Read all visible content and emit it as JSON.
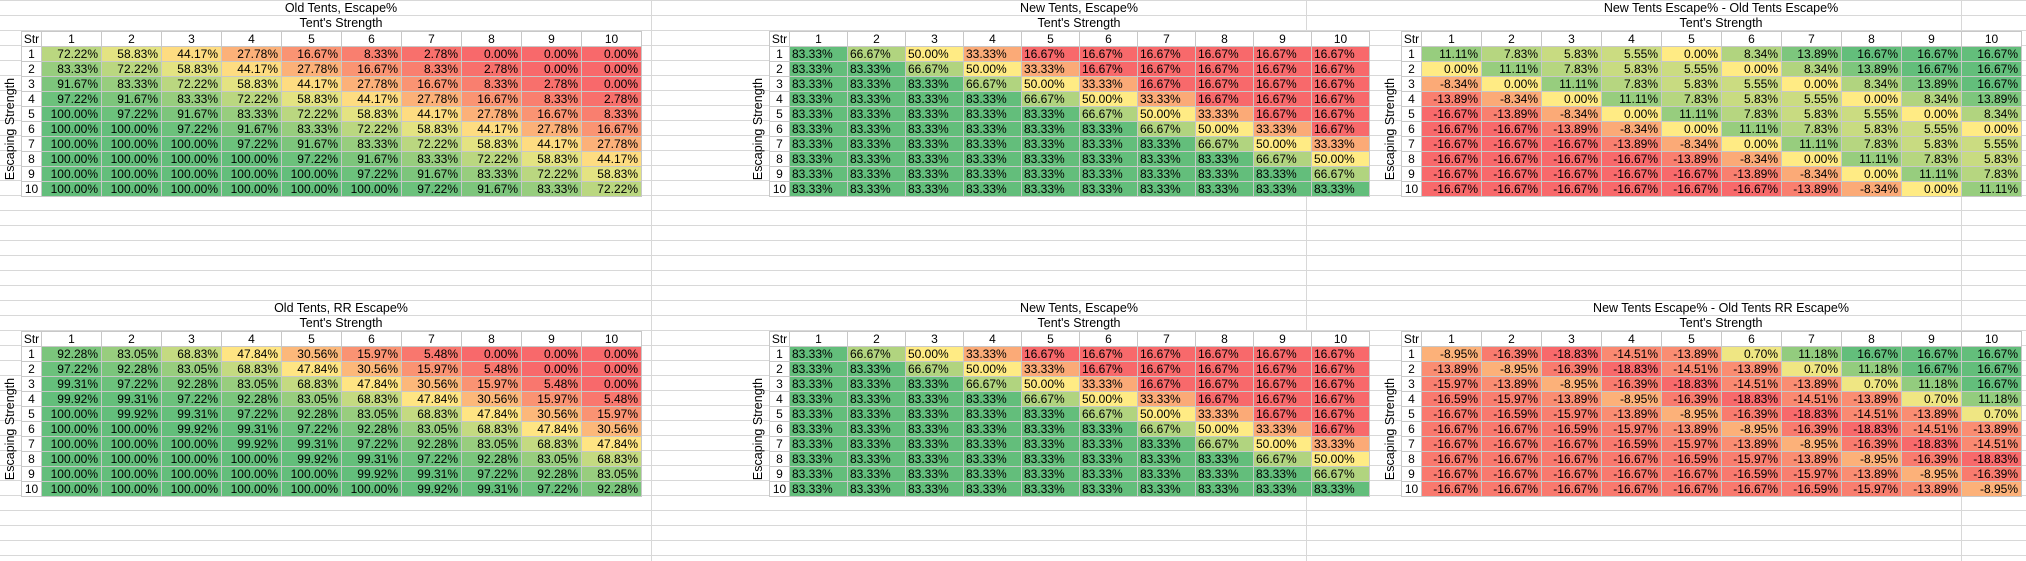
{
  "colors": {
    "red": "#f8696b",
    "yellow": "#ffeb84",
    "green": "#63be7b"
  },
  "tables": [
    {
      "title": "Old Tents, Escape%",
      "subtitle": "Tent's Strength",
      "ylabel": "Escaping Strength",
      "corner": "Str",
      "cols": [
        "1",
        "2",
        "3",
        "4",
        "5",
        "6",
        "7",
        "8",
        "9",
        "10"
      ],
      "rows": [
        "1",
        "2",
        "3",
        "4",
        "5",
        "6",
        "7",
        "8",
        "9",
        "10"
      ],
      "values": [
        [
          "72.22%",
          "58.83%",
          "44.17%",
          "27.78%",
          "16.67%",
          "8.33%",
          "2.78%",
          "0.00%",
          "0.00%",
          "0.00%"
        ],
        [
          "83.33%",
          "72.22%",
          "58.83%",
          "44.17%",
          "27.78%",
          "16.67%",
          "8.33%",
          "2.78%",
          "0.00%",
          "0.00%"
        ],
        [
          "91.67%",
          "83.33%",
          "72.22%",
          "58.83%",
          "44.17%",
          "27.78%",
          "16.67%",
          "8.33%",
          "2.78%",
          "0.00%"
        ],
        [
          "97.22%",
          "91.67%",
          "83.33%",
          "72.22%",
          "58.83%",
          "44.17%",
          "27.78%",
          "16.67%",
          "8.33%",
          "2.78%"
        ],
        [
          "100.00%",
          "97.22%",
          "91.67%",
          "83.33%",
          "72.22%",
          "58.83%",
          "44.17%",
          "27.78%",
          "16.67%",
          "8.33%"
        ],
        [
          "100.00%",
          "100.00%",
          "97.22%",
          "91.67%",
          "83.33%",
          "72.22%",
          "58.83%",
          "44.17%",
          "27.78%",
          "16.67%"
        ],
        [
          "100.00%",
          "100.00%",
          "100.00%",
          "97.22%",
          "91.67%",
          "83.33%",
          "72.22%",
          "58.83%",
          "44.17%",
          "27.78%"
        ],
        [
          "100.00%",
          "100.00%",
          "100.00%",
          "100.00%",
          "97.22%",
          "91.67%",
          "83.33%",
          "72.22%",
          "58.83%",
          "44.17%"
        ],
        [
          "100.00%",
          "100.00%",
          "100.00%",
          "100.00%",
          "100.00%",
          "97.22%",
          "91.67%",
          "83.33%",
          "72.22%",
          "58.83%"
        ],
        [
          "100.00%",
          "100.00%",
          "100.00%",
          "100.00%",
          "100.00%",
          "100.00%",
          "97.22%",
          "91.67%",
          "83.33%",
          "72.22%"
        ]
      ]
    },
    {
      "title": "New Tents, Escape%",
      "subtitle": "Tent's Strength",
      "ylabel": "Escaping Strength",
      "corner": "Str",
      "cols": [
        "1",
        "2",
        "3",
        "4",
        "5",
        "6",
        "7",
        "8",
        "9",
        "10"
      ],
      "rows": [
        "1",
        "2",
        "3",
        "4",
        "5",
        "6",
        "7",
        "8",
        "9",
        "10"
      ],
      "values": [
        [
          "83.33%",
          "66.67%",
          "50.00%",
          "33.33%",
          "16.67%",
          "16.67%",
          "16.67%",
          "16.67%",
          "16.67%",
          "16.67%"
        ],
        [
          "83.33%",
          "83.33%",
          "66.67%",
          "50.00%",
          "33.33%",
          "16.67%",
          "16.67%",
          "16.67%",
          "16.67%",
          "16.67%"
        ],
        [
          "83.33%",
          "83.33%",
          "83.33%",
          "66.67%",
          "50.00%",
          "33.33%",
          "16.67%",
          "16.67%",
          "16.67%",
          "16.67%"
        ],
        [
          "83.33%",
          "83.33%",
          "83.33%",
          "83.33%",
          "66.67%",
          "50.00%",
          "33.33%",
          "16.67%",
          "16.67%",
          "16.67%"
        ],
        [
          "83.33%",
          "83.33%",
          "83.33%",
          "83.33%",
          "83.33%",
          "66.67%",
          "50.00%",
          "33.33%",
          "16.67%",
          "16.67%"
        ],
        [
          "83.33%",
          "83.33%",
          "83.33%",
          "83.33%",
          "83.33%",
          "83.33%",
          "66.67%",
          "50.00%",
          "33.33%",
          "16.67%"
        ],
        [
          "83.33%",
          "83.33%",
          "83.33%",
          "83.33%",
          "83.33%",
          "83.33%",
          "83.33%",
          "66.67%",
          "50.00%",
          "33.33%"
        ],
        [
          "83.33%",
          "83.33%",
          "83.33%",
          "83.33%",
          "83.33%",
          "83.33%",
          "83.33%",
          "83.33%",
          "66.67%",
          "50.00%"
        ],
        [
          "83.33%",
          "83.33%",
          "83.33%",
          "83.33%",
          "83.33%",
          "83.33%",
          "83.33%",
          "83.33%",
          "83.33%",
          "66.67%"
        ],
        [
          "83.33%",
          "83.33%",
          "83.33%",
          "83.33%",
          "83.33%",
          "83.33%",
          "83.33%",
          "83.33%",
          "83.33%",
          "83.33%"
        ]
      ]
    },
    {
      "title": "New Tents Escape% - Old Tents Escape%",
      "subtitle": "Tent's Strength",
      "ylabel": "Escaping Strength",
      "corner": "Str",
      "cols": [
        "1",
        "2",
        "3",
        "4",
        "5",
        "6",
        "7",
        "8",
        "9",
        "10"
      ],
      "rows": [
        "1",
        "2",
        "3",
        "4",
        "5",
        "6",
        "7",
        "8",
        "9",
        "10"
      ],
      "values": [
        [
          "11.11%",
          "7.83%",
          "5.83%",
          "5.55%",
          "0.00%",
          "8.34%",
          "13.89%",
          "16.67%",
          "16.67%",
          "16.67%"
        ],
        [
          "0.00%",
          "11.11%",
          "7.83%",
          "5.83%",
          "5.55%",
          "0.00%",
          "8.34%",
          "13.89%",
          "16.67%",
          "16.67%"
        ],
        [
          "-8.34%",
          "0.00%",
          "11.11%",
          "7.83%",
          "5.83%",
          "5.55%",
          "0.00%",
          "8.34%",
          "13.89%",
          "16.67%"
        ],
        [
          "-13.89%",
          "-8.34%",
          "0.00%",
          "11.11%",
          "7.83%",
          "5.83%",
          "5.55%",
          "0.00%",
          "8.34%",
          "13.89%"
        ],
        [
          "-16.67%",
          "-13.89%",
          "-8.34%",
          "0.00%",
          "11.11%",
          "7.83%",
          "5.83%",
          "5.55%",
          "0.00%",
          "8.34%"
        ],
        [
          "-16.67%",
          "-16.67%",
          "-13.89%",
          "-8.34%",
          "0.00%",
          "11.11%",
          "7.83%",
          "5.83%",
          "5.55%",
          "0.00%"
        ],
        [
          "-16.67%",
          "-16.67%",
          "-16.67%",
          "-13.89%",
          "-8.34%",
          "0.00%",
          "11.11%",
          "7.83%",
          "5.83%",
          "5.55%"
        ],
        [
          "-16.67%",
          "-16.67%",
          "-16.67%",
          "-16.67%",
          "-13.89%",
          "-8.34%",
          "0.00%",
          "11.11%",
          "7.83%",
          "5.83%"
        ],
        [
          "-16.67%",
          "-16.67%",
          "-16.67%",
          "-16.67%",
          "-16.67%",
          "-13.89%",
          "-8.34%",
          "0.00%",
          "11.11%",
          "7.83%"
        ],
        [
          "-16.67%",
          "-16.67%",
          "-16.67%",
          "-16.67%",
          "-16.67%",
          "-16.67%",
          "-13.89%",
          "-8.34%",
          "0.00%",
          "11.11%"
        ]
      ]
    },
    {
      "title": "Old Tents, RR Escape%",
      "subtitle": "Tent's Strength",
      "ylabel": "Escaping Strength",
      "corner": "Str",
      "cols": [
        "1",
        "2",
        "3",
        "4",
        "5",
        "6",
        "7",
        "8",
        "9",
        "10"
      ],
      "rows": [
        "1",
        "2",
        "3",
        "4",
        "5",
        "6",
        "7",
        "8",
        "9",
        "10"
      ],
      "values": [
        [
          "92.28%",
          "83.05%",
          "68.83%",
          "47.84%",
          "30.56%",
          "15.97%",
          "5.48%",
          "0.00%",
          "0.00%",
          "0.00%"
        ],
        [
          "97.22%",
          "92.28%",
          "83.05%",
          "68.83%",
          "47.84%",
          "30.56%",
          "15.97%",
          "5.48%",
          "0.00%",
          "0.00%"
        ],
        [
          "99.31%",
          "97.22%",
          "92.28%",
          "83.05%",
          "68.83%",
          "47.84%",
          "30.56%",
          "15.97%",
          "5.48%",
          "0.00%"
        ],
        [
          "99.92%",
          "99.31%",
          "97.22%",
          "92.28%",
          "83.05%",
          "68.83%",
          "47.84%",
          "30.56%",
          "15.97%",
          "5.48%"
        ],
        [
          "100.00%",
          "99.92%",
          "99.31%",
          "97.22%",
          "92.28%",
          "83.05%",
          "68.83%",
          "47.84%",
          "30.56%",
          "15.97%"
        ],
        [
          "100.00%",
          "100.00%",
          "99.92%",
          "99.31%",
          "97.22%",
          "92.28%",
          "83.05%",
          "68.83%",
          "47.84%",
          "30.56%"
        ],
        [
          "100.00%",
          "100.00%",
          "100.00%",
          "99.92%",
          "99.31%",
          "97.22%",
          "92.28%",
          "83.05%",
          "68.83%",
          "47.84%"
        ],
        [
          "100.00%",
          "100.00%",
          "100.00%",
          "100.00%",
          "99.92%",
          "99.31%",
          "97.22%",
          "92.28%",
          "83.05%",
          "68.83%"
        ],
        [
          "100.00%",
          "100.00%",
          "100.00%",
          "100.00%",
          "100.00%",
          "99.92%",
          "99.31%",
          "97.22%",
          "92.28%",
          "83.05%"
        ],
        [
          "100.00%",
          "100.00%",
          "100.00%",
          "100.00%",
          "100.00%",
          "100.00%",
          "99.92%",
          "99.31%",
          "97.22%",
          "92.28%"
        ]
      ]
    },
    {
      "title": "New Tents, Escape%",
      "subtitle": "Tent's Strength",
      "ylabel": "Escaping Strength",
      "corner": "Str",
      "cols": [
        "1",
        "2",
        "3",
        "4",
        "5",
        "6",
        "7",
        "8",
        "9",
        "10"
      ],
      "rows": [
        "1",
        "2",
        "3",
        "4",
        "5",
        "6",
        "7",
        "8",
        "9",
        "10"
      ],
      "values": [
        [
          "83.33%",
          "66.67%",
          "50.00%",
          "33.33%",
          "16.67%",
          "16.67%",
          "16.67%",
          "16.67%",
          "16.67%",
          "16.67%"
        ],
        [
          "83.33%",
          "83.33%",
          "66.67%",
          "50.00%",
          "33.33%",
          "16.67%",
          "16.67%",
          "16.67%",
          "16.67%",
          "16.67%"
        ],
        [
          "83.33%",
          "83.33%",
          "83.33%",
          "66.67%",
          "50.00%",
          "33.33%",
          "16.67%",
          "16.67%",
          "16.67%",
          "16.67%"
        ],
        [
          "83.33%",
          "83.33%",
          "83.33%",
          "83.33%",
          "66.67%",
          "50.00%",
          "33.33%",
          "16.67%",
          "16.67%",
          "16.67%"
        ],
        [
          "83.33%",
          "83.33%",
          "83.33%",
          "83.33%",
          "83.33%",
          "66.67%",
          "50.00%",
          "33.33%",
          "16.67%",
          "16.67%"
        ],
        [
          "83.33%",
          "83.33%",
          "83.33%",
          "83.33%",
          "83.33%",
          "83.33%",
          "66.67%",
          "50.00%",
          "33.33%",
          "16.67%"
        ],
        [
          "83.33%",
          "83.33%",
          "83.33%",
          "83.33%",
          "83.33%",
          "83.33%",
          "83.33%",
          "66.67%",
          "50.00%",
          "33.33%"
        ],
        [
          "83.33%",
          "83.33%",
          "83.33%",
          "83.33%",
          "83.33%",
          "83.33%",
          "83.33%",
          "83.33%",
          "66.67%",
          "50.00%"
        ],
        [
          "83.33%",
          "83.33%",
          "83.33%",
          "83.33%",
          "83.33%",
          "83.33%",
          "83.33%",
          "83.33%",
          "83.33%",
          "66.67%"
        ],
        [
          "83.33%",
          "83.33%",
          "83.33%",
          "83.33%",
          "83.33%",
          "83.33%",
          "83.33%",
          "83.33%",
          "83.33%",
          "83.33%"
        ]
      ]
    },
    {
      "title": "New Tents Escape% - Old Tents RR Escape%",
      "subtitle": "Tent's Strength",
      "ylabel": "Escaping Strength",
      "corner": "Str",
      "cols": [
        "1",
        "2",
        "3",
        "4",
        "5",
        "6",
        "7",
        "8",
        "9",
        "10"
      ],
      "rows": [
        "1",
        "2",
        "3",
        "4",
        "5",
        "6",
        "7",
        "8",
        "9",
        "10"
      ],
      "values": [
        [
          "-8.95%",
          "-16.39%",
          "-18.83%",
          "-14.51%",
          "-13.89%",
          "0.70%",
          "11.18%",
          "16.67%",
          "16.67%",
          "16.67%"
        ],
        [
          "-13.89%",
          "-8.95%",
          "-16.39%",
          "-18.83%",
          "-14.51%",
          "-13.89%",
          "0.70%",
          "11.18%",
          "16.67%",
          "16.67%"
        ],
        [
          "-15.97%",
          "-13.89%",
          "-8.95%",
          "-16.39%",
          "-18.83%",
          "-14.51%",
          "-13.89%",
          "0.70%",
          "11.18%",
          "16.67%"
        ],
        [
          "-16.59%",
          "-15.97%",
          "-13.89%",
          "-8.95%",
          "-16.39%",
          "-18.83%",
          "-14.51%",
          "-13.89%",
          "0.70%",
          "11.18%"
        ],
        [
          "-16.67%",
          "-16.59%",
          "-15.97%",
          "-13.89%",
          "-8.95%",
          "-16.39%",
          "-18.83%",
          "-14.51%",
          "-13.89%",
          "0.70%"
        ],
        [
          "-16.67%",
          "-16.67%",
          "-16.59%",
          "-15.97%",
          "-13.89%",
          "-8.95%",
          "-16.39%",
          "-18.83%",
          "-14.51%",
          "-13.89%"
        ],
        [
          "-16.67%",
          "-16.67%",
          "-16.67%",
          "-16.59%",
          "-15.97%",
          "-13.89%",
          "-8.95%",
          "-16.39%",
          "-18.83%",
          "-14.51%"
        ],
        [
          "-16.67%",
          "-16.67%",
          "-16.67%",
          "-16.67%",
          "-16.59%",
          "-15.97%",
          "-13.89%",
          "-8.95%",
          "-16.39%",
          "-18.83%"
        ],
        [
          "-16.67%",
          "-16.67%",
          "-16.67%",
          "-16.67%",
          "-16.67%",
          "-16.59%",
          "-15.97%",
          "-13.89%",
          "-8.95%",
          "-16.39%"
        ],
        [
          "-16.67%",
          "-16.67%",
          "-16.67%",
          "-16.67%",
          "-16.67%",
          "-16.67%",
          "-16.59%",
          "-15.97%",
          "-13.89%",
          "-8.95%"
        ]
      ]
    }
  ]
}
